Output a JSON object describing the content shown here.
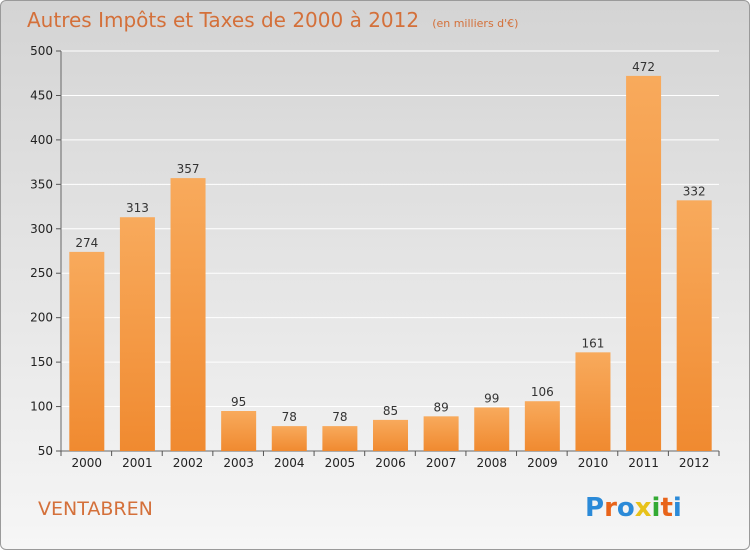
{
  "chart_data": {
    "type": "bar",
    "title": "Autres Impôts et Taxes de 2000 à 2012",
    "subtitle": "(en milliers d'€)",
    "categories": [
      "2000",
      "2001",
      "2002",
      "2003",
      "2004",
      "2005",
      "2006",
      "2007",
      "2008",
      "2009",
      "2010",
      "2011",
      "2012"
    ],
    "values": [
      274,
      313,
      357,
      95,
      78,
      78,
      85,
      89,
      99,
      106,
      161,
      472,
      332
    ],
    "ylim": [
      50,
      500
    ],
    "yticks": [
      50,
      100,
      150,
      200,
      250,
      300,
      350,
      400,
      450,
      500
    ],
    "grid": true,
    "bar_color": "#f08a30",
    "bar_color_light": "#f8aa5c",
    "grid_color": "#ffffff"
  },
  "commune": "VENTABREN",
  "logo": {
    "text": "Proxiti",
    "letter_colors": [
      "#2b8ad8",
      "#e8641a",
      "#2b8ad8",
      "#e8c21a",
      "#33aa33",
      "#e8641a",
      "#2b8ad8"
    ]
  }
}
